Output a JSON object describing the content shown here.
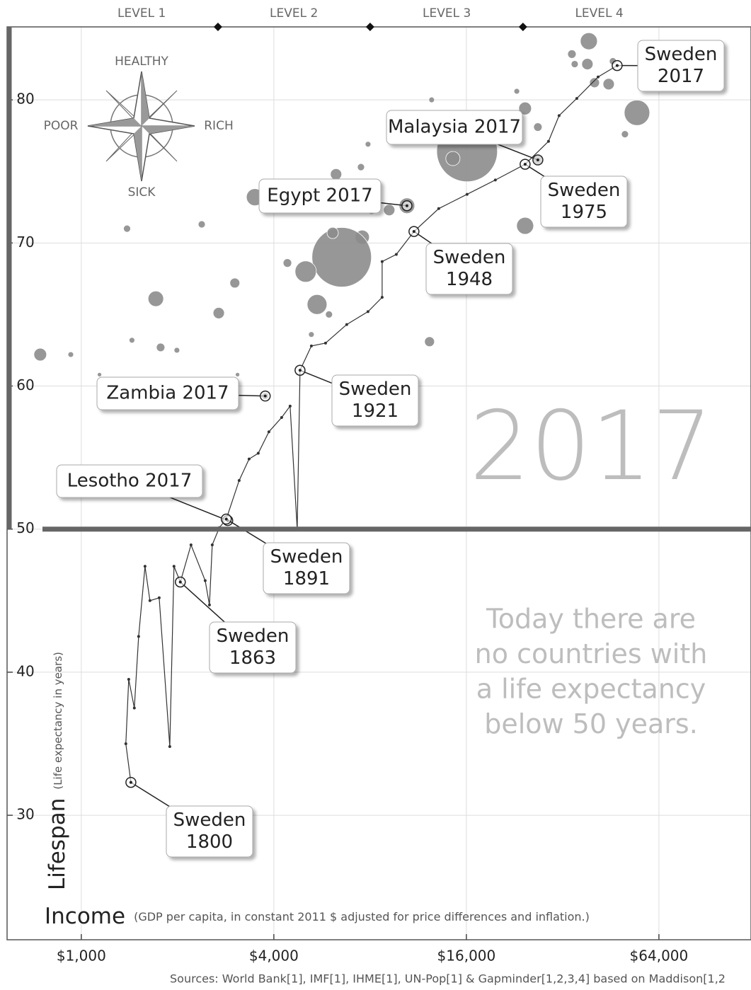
{
  "chart_data": {
    "type": "bubble",
    "xlabel": "Income",
    "xlabel_note": "(GDP per capita, in constant 2011 $ adjusted for price differences and inflation.)",
    "ylabel": "Lifespan",
    "ylabel_note": "(Life expectancy in years)",
    "xscale": "log",
    "xlim": [
      586,
      124200
    ],
    "xticks": [
      {
        "value": 1000,
        "label": "$1,000"
      },
      {
        "value": 4000,
        "label": "$4,000"
      },
      {
        "value": 16000,
        "label": "$16,000"
      },
      {
        "value": 64000,
        "label": "$64,000"
      }
    ],
    "ylim": [
      21.3,
      85.1
    ],
    "yticks": [
      30,
      40,
      50,
      60,
      70,
      80
    ],
    "grid": true,
    "threshold": 50,
    "levels": {
      "labels": [
        "LEVEL 1",
        "LEVEL 2",
        "LEVEL 3",
        "LEVEL 4"
      ],
      "bounds": [
        2675,
        8000,
        24050
      ]
    },
    "compass": {
      "up": "HEALTHY",
      "down": "SICK",
      "left": "POOR",
      "right": "RICH"
    },
    "year": "2017",
    "note": [
      "Today there are",
      "no countries with",
      "a life expectancy",
      "below 50 years."
    ],
    "sources": "Sources: World Bank[1], IMF[1], IHME[1], UN-Pop[1] & Gapminder[1,2,3,4] based on Maddison[1,2",
    "series": [
      {
        "type": "bubble",
        "color": "#8c8c8c",
        "x": [
          38640,
          34200,
          38240,
          34900,
          45950,
          40250,
          44570,
          54650,
          50110,
          24420,
          26770,
          12460,
          16080,
          14520,
          10430,
          9180,
          6260,
          8080,
          7560,
          6520,
          5030,
          5460,
          4410,
          3490,
          3020,
          2690,
          2380,
          1710,
          1390,
          1770,
          1990,
          744,
          927,
          24420,
          12270,
          5950,
          3760,
          3080,
          5240,
          2870,
          1440,
          1140,
          6110,
          7880,
          7490,
          23000,
          26770
        ],
        "values": [
          84.1,
          83.2,
          82.5,
          82.5,
          82.7,
          81.2,
          81.1,
          79.1,
          77.6,
          79.4,
          78.1,
          80.0,
          76.4,
          75.9,
          72.6,
          72.3,
          74.8,
          72.4,
          70.4,
          69.0,
          68.0,
          65.7,
          68.6,
          73.2,
          67.2,
          65.1,
          71.3,
          66.1,
          71.0,
          62.7,
          62.5,
          62.2,
          62.2,
          71.2,
          63.1,
          65.0,
          59.3,
          60.8,
          63.6,
          50.6,
          63.2,
          60.8,
          70.7,
          76.9,
          75.3,
          80.6,
          75.8
        ],
        "sizes": [
          109,
          27,
          48,
          19,
          19,
          37,
          48,
          245,
          19,
          61,
          27,
          12,
          1390,
          76,
          91,
          48,
          48,
          48,
          76,
          1334,
          170,
          148,
          27,
          109,
          37,
          48,
          19,
          91,
          19,
          27,
          12,
          61,
          12,
          109,
          37,
          19,
          19,
          7,
          12,
          2,
          12,
          7,
          48,
          12,
          19,
          12,
          31
        ]
      },
      {
        "type": "line",
        "color": "#333333",
        "x": [
          1429,
          1378,
          1407,
          1465,
          1511,
          1582,
          1639,
          1752,
          1891,
          1949,
          2040,
          2203,
          2440,
          2516,
          2567,
          2702,
          2840,
          3116,
          3347,
          3575,
          3860,
          4231,
          4497,
          4733,
          4830,
          5241,
          5804,
          6760,
          7878,
          8724,
          8724,
          9661,
          10970,
          13110,
          16080,
          19710,
          24420,
          28900,
          31190,
          35430,
          41300,
          47380
        ],
        "values": [
          32.3,
          35.0,
          39.5,
          37.5,
          42.5,
          47.4,
          45.0,
          45.2,
          34.8,
          47.4,
          46.3,
          48.9,
          46.4,
          44.7,
          48.9,
          50.1,
          50.7,
          53.4,
          54.9,
          55.3,
          56.8,
          57.8,
          58.6,
          50.0,
          61.1,
          62.8,
          63.0,
          64.3,
          65.2,
          66.2,
          68.7,
          69.2,
          70.8,
          72.4,
          73.4,
          74.4,
          75.5,
          77.1,
          78.9,
          80.1,
          81.6,
          82.4
        ]
      }
    ],
    "annotations": [
      {
        "text": [
          "Sweden",
          "2017"
        ],
        "x": 47380,
        "y": 82.4
      },
      {
        "text": [
          "Malaysia 2017"
        ],
        "x": 26770,
        "y": 75.8
      },
      {
        "text": [
          "Sweden",
          "1975"
        ],
        "x": 24420,
        "y": 75.5
      },
      {
        "text": [
          "Egypt 2017"
        ],
        "x": 10430,
        "y": 72.6
      },
      {
        "text": [
          "Sweden",
          "1948"
        ],
        "x": 10970,
        "y": 70.8
      },
      {
        "text": [
          "Sweden",
          "1921"
        ],
        "x": 4830,
        "y": 61.1
      },
      {
        "text": [
          "Zambia 2017"
        ],
        "x": 3760,
        "y": 59.3
      },
      {
        "text": [
          "Lesotho 2017"
        ],
        "x": 2870,
        "y": 50.6
      },
      {
        "text": [
          "Sweden",
          "1891"
        ],
        "x": 2840,
        "y": 50.7
      },
      {
        "text": [
          "Sweden",
          "1863"
        ],
        "x": 2040,
        "y": 46.3
      },
      {
        "text": [
          "Sweden",
          "1800"
        ],
        "x": 1429,
        "y": 32.3
      }
    ]
  }
}
